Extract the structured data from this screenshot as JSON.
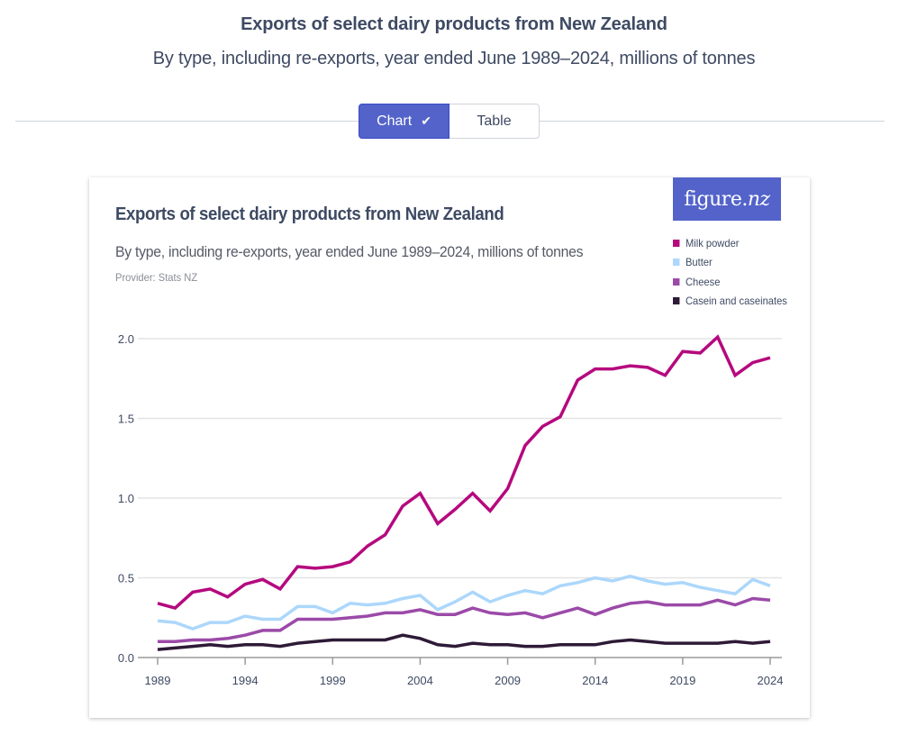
{
  "page": {
    "title": "Exports of select dairy products from New Zealand",
    "subtitle": "By type, including re-exports, year ended June 1989–2024, millions of tonnes"
  },
  "view_toggle": {
    "chart_label": "Chart",
    "table_label": "Table",
    "selected": "Chart"
  },
  "card": {
    "title": "Exports of select dairy products from New Zealand",
    "subtitle": "By type, including re-exports, year ended June 1989–2024, millions of tonnes",
    "provider": "Provider: Stats NZ",
    "logo": {
      "main": "figure.",
      "italic": "nz"
    }
  },
  "colors": {
    "accent": "#5363c9",
    "gridline": "#e3e3e3",
    "axis": "#9a9a9a"
  },
  "chart_data": {
    "type": "line",
    "title": "Exports of select dairy products from New Zealand",
    "subtitle": "By type, including re-exports, year ended June 1989–2024, millions of tonnes",
    "xlabel": "",
    "ylabel": "",
    "x": [
      1989,
      1990,
      1991,
      1992,
      1993,
      1994,
      1995,
      1996,
      1997,
      1998,
      1999,
      2000,
      2001,
      2002,
      2003,
      2004,
      2005,
      2006,
      2007,
      2008,
      2009,
      2010,
      2011,
      2012,
      2013,
      2014,
      2015,
      2016,
      2017,
      2018,
      2019,
      2020,
      2021,
      2022,
      2023,
      2024
    ],
    "xticks": [
      "1989",
      "1994",
      "1999",
      "2004",
      "2009",
      "2014",
      "2019",
      "2024"
    ],
    "xtick_values": [
      1989,
      1994,
      1999,
      2004,
      2009,
      2014,
      2019,
      2024
    ],
    "yticks": [
      "0.0",
      "0.5",
      "1.0",
      "1.5",
      "2.0"
    ],
    "ytick_values": [
      0,
      0.5,
      1.0,
      1.5,
      2.0
    ],
    "ylim": [
      0,
      2.0
    ],
    "xlim": [
      1989,
      2024
    ],
    "grid": true,
    "legend_position": "top-right",
    "series": [
      {
        "name": "Milk powder",
        "color": "#b5097e",
        "values": [
          0.34,
          0.31,
          0.41,
          0.43,
          0.38,
          0.46,
          0.49,
          0.43,
          0.57,
          0.56,
          0.57,
          0.6,
          0.7,
          0.77,
          0.95,
          1.03,
          0.84,
          0.93,
          1.03,
          0.92,
          1.06,
          1.33,
          1.45,
          1.51,
          1.74,
          1.81,
          1.81,
          1.83,
          1.82,
          1.77,
          1.92,
          1.91,
          2.01,
          1.77,
          1.85,
          1.88
        ]
      },
      {
        "name": "Butter",
        "color": "#acd7fb",
        "values": [
          0.23,
          0.22,
          0.18,
          0.22,
          0.22,
          0.26,
          0.24,
          0.24,
          0.32,
          0.32,
          0.28,
          0.34,
          0.33,
          0.34,
          0.37,
          0.39,
          0.3,
          0.35,
          0.41,
          0.35,
          0.39,
          0.42,
          0.4,
          0.45,
          0.47,
          0.5,
          0.48,
          0.51,
          0.48,
          0.46,
          0.47,
          0.44,
          0.42,
          0.4,
          0.49,
          0.45
        ]
      },
      {
        "name": "Cheese",
        "color": "#9b4aa8",
        "values": [
          0.1,
          0.1,
          0.11,
          0.11,
          0.12,
          0.14,
          0.17,
          0.17,
          0.24,
          0.24,
          0.24,
          0.25,
          0.26,
          0.28,
          0.28,
          0.3,
          0.27,
          0.27,
          0.31,
          0.28,
          0.27,
          0.28,
          0.25,
          0.28,
          0.31,
          0.27,
          0.31,
          0.34,
          0.35,
          0.33,
          0.33,
          0.33,
          0.36,
          0.33,
          0.37,
          0.36
        ]
      },
      {
        "name": "Casein and caseinates",
        "color": "#2e1a36",
        "values": [
          0.05,
          0.06,
          0.07,
          0.08,
          0.07,
          0.08,
          0.08,
          0.07,
          0.09,
          0.1,
          0.11,
          0.11,
          0.11,
          0.11,
          0.14,
          0.12,
          0.08,
          0.07,
          0.09,
          0.08,
          0.08,
          0.07,
          0.07,
          0.08,
          0.08,
          0.08,
          0.1,
          0.11,
          0.1,
          0.09,
          0.09,
          0.09,
          0.09,
          0.1,
          0.09,
          0.1
        ]
      }
    ]
  }
}
